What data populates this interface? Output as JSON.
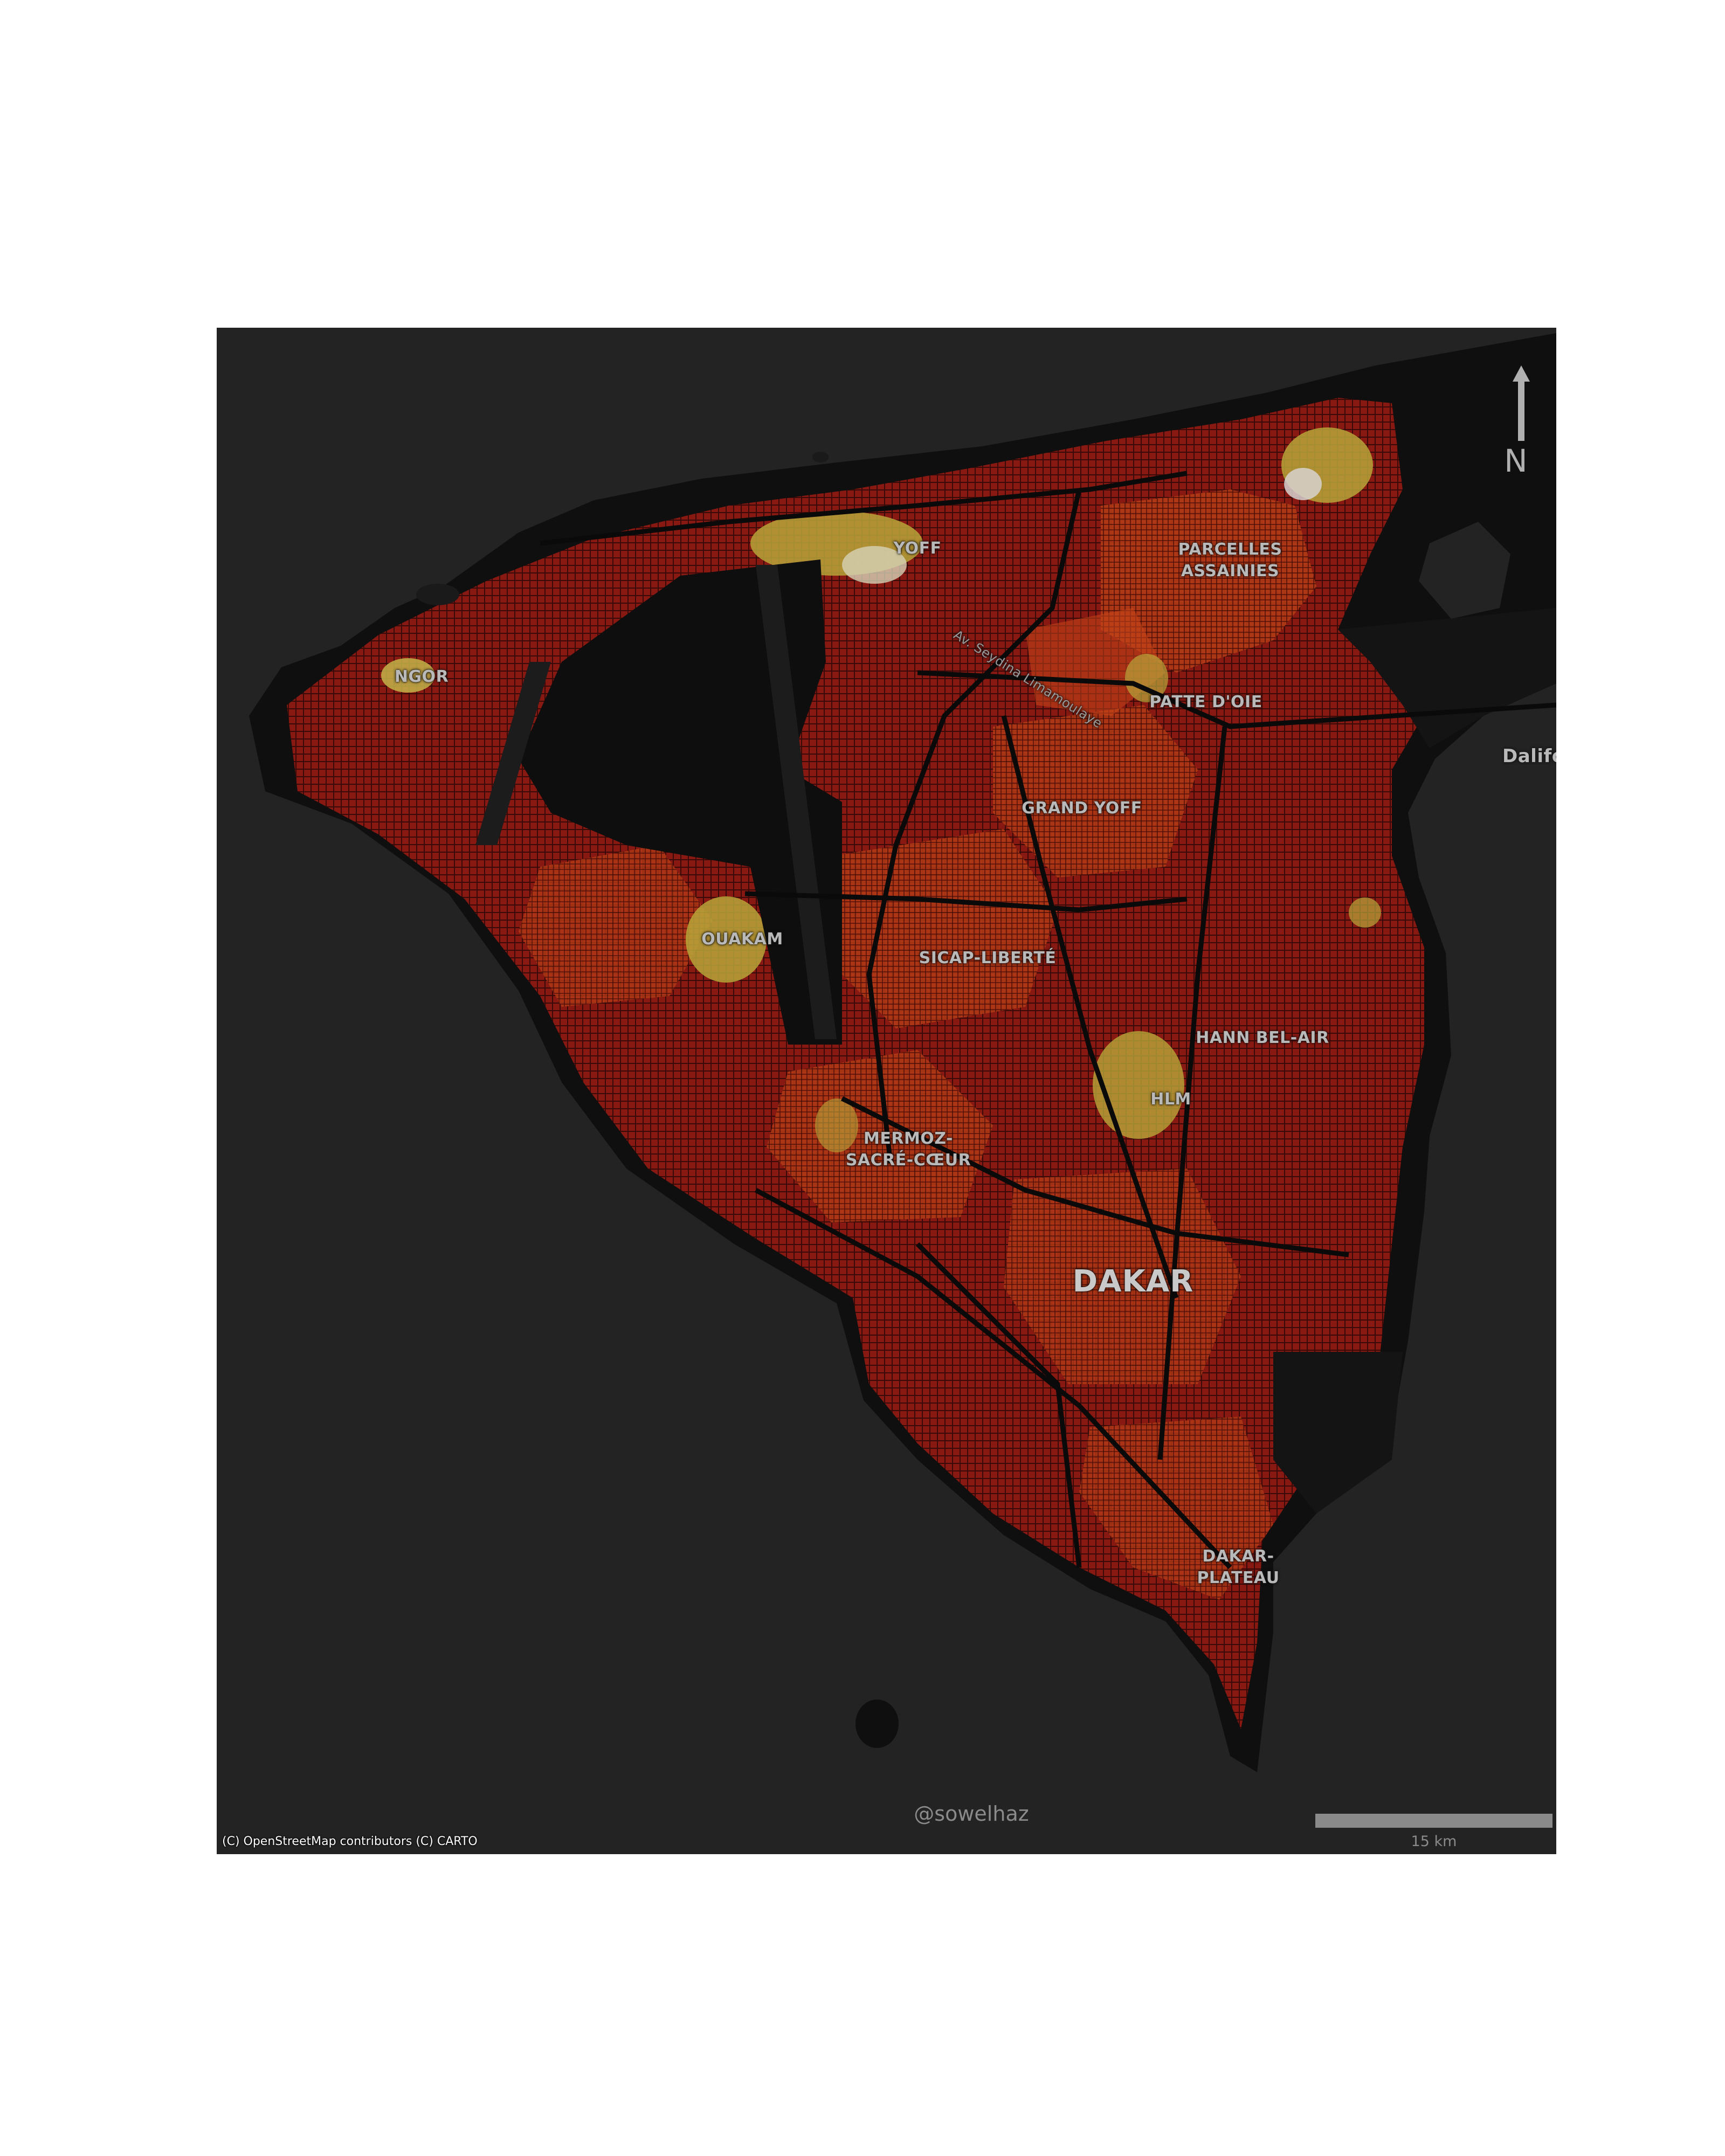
{
  "map": {
    "background_color": "#232323",
    "land_color": "#0f0f0f",
    "color_scale": [
      "#7a0f0f",
      "#a51b12",
      "#c9461a",
      "#d98a2a",
      "#c8b43a",
      "#d8d8c8"
    ],
    "places": [
      {
        "id": "yoff",
        "label": "YOFF",
        "kind": "normal"
      },
      {
        "id": "parcelles-assainies",
        "label": "PARCELLES\nASSAINIES",
        "kind": "normal"
      },
      {
        "id": "ngor",
        "label": "NGOR",
        "kind": "normal"
      },
      {
        "id": "patte-doie",
        "label": "PATTE D'OIE",
        "kind": "normal"
      },
      {
        "id": "grand-yoff",
        "label": "GRAND YOFF",
        "kind": "normal"
      },
      {
        "id": "ouakam",
        "label": "OUAKAM",
        "kind": "normal"
      },
      {
        "id": "sicap-liberte",
        "label": "SICAP-LIBERTÉ",
        "kind": "normal"
      },
      {
        "id": "hann-bel-air",
        "label": "HANN BEL-AIR",
        "kind": "normal"
      },
      {
        "id": "hlm",
        "label": "HLM",
        "kind": "normal"
      },
      {
        "id": "mermoz-sacre-coeur",
        "label": "MERMOZ-\nSACRÉ-CŒUR",
        "kind": "normal"
      },
      {
        "id": "dakar",
        "label": "DAKAR",
        "kind": "big"
      },
      {
        "id": "dakar-plateau",
        "label": "DAKAR-\nPLATEAU",
        "kind": "normal"
      },
      {
        "id": "dalifort",
        "label": "Dalifo",
        "kind": "edge"
      },
      {
        "id": "road-seydina",
        "label": "Av. Seydina Limamoulaye",
        "kind": "road"
      }
    ],
    "north_arrow": {
      "label": "N",
      "color": "#b0b0b0"
    },
    "watermark": "@sowelhaz",
    "scale_bar": {
      "label": "15 km",
      "color": "#8a8a8a"
    },
    "attribution": "(C) OpenStreetMap contributors (C) CARTO"
  }
}
